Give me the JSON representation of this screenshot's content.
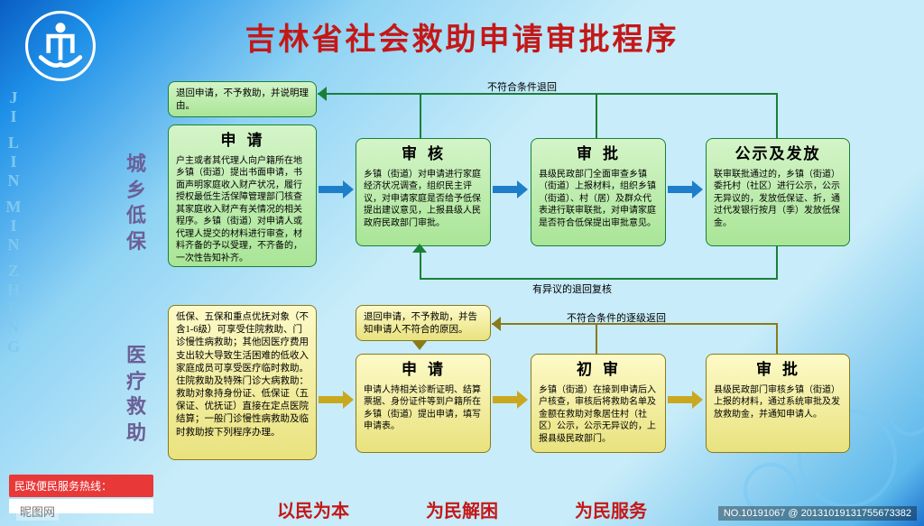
{
  "title": "吉林省社会救助申请审批程序",
  "sidebar_vertical": "JI LIN MIN ZHENG",
  "colors": {
    "green": "#1a8038",
    "yellow": "#8a7a1a",
    "red": "#c41818",
    "blue_arrow": "#1f7ec9"
  },
  "section1": {
    "label": "城乡低保",
    "boxes": [
      {
        "title": "申请",
        "body": "户主或者其代理人向户籍所在地乡镇（街道）提出书面申请，书面声明家庭收入财产状况，履行授权最低生活保障管理部门核查其家庭收入财产有关情况的相关程序。乡镇（街道）对申请人或代理人提交的材料进行审查，材料齐备的予以受理，不齐备的，一次性告知补齐。"
      },
      {
        "title": "审核",
        "body": "乡镇（街道）对申请进行家庭经济状况调查，组织民主评议，对申请家庭是否给予低保提出建议意见，上报县级人民政府民政部门审批。"
      },
      {
        "title": "审批",
        "body": "县级民政部门全面审查乡镇（街道）上报材料，组织乡镇（街道）、村（居）及群众代表进行联审联批，对申请家庭是否符合低保提出审批意见。"
      },
      {
        "title": "公示及发放",
        "body": "联审联批通过的，乡镇（街道）委托村（社区）进行公示，公示无异议的，发放低保证、折，通过代发银行按月（季）发放低保金。"
      }
    ],
    "reject": {
      "body": "退回申请，不予救助，并说明理由。"
    },
    "caption_top": "不符合条件退回",
    "caption_bottom": "有异议的退回复核"
  },
  "section2": {
    "label": "医疗救助",
    "intro": {
      "body": "低保、五保和重点优抚对象（不含1-6级）可享受住院救助、门诊慢性病救助；其他因医疗费用支出较大导致生活困难的低收入家庭成员可享受医疗临时救助。住院救助及特殊门诊大病救助：救助对象持身份证、低保证（五保证、优抚证）直接在定点医院结算；一般门诊慢性病救助及临时救助按下列程序办理。"
    },
    "boxes": [
      {
        "title": "申请",
        "body": "申请人持相关诊断证明、结算票据、身份证件等到户籍所在乡镇（街道）提出申请，填写申请表。"
      },
      {
        "title": "初审",
        "body": "乡镇（街道）在接到申请后入户核查，审核后将救助名单及金额在救助对象居住村（社区）公示，公示无异议的，上报县级民政部门。"
      },
      {
        "title": "审批",
        "body": "县级民政部门审核乡镇（街道）上报的材料，通过系统审批及发放救助金，并通知申请人。"
      }
    ],
    "reject": {
      "body": "退回申请，不予救助，并告知申请人不符合的原因。"
    },
    "caption_top": "不符合条件的逐级返回"
  },
  "hotline": "民政便民服务热线：",
  "footer": [
    "以民为本",
    "为民解困",
    "为民服务"
  ],
  "watermark_left": "昵图网",
  "watermark_right": "NO.10191067 @ 20131019131755673382"
}
